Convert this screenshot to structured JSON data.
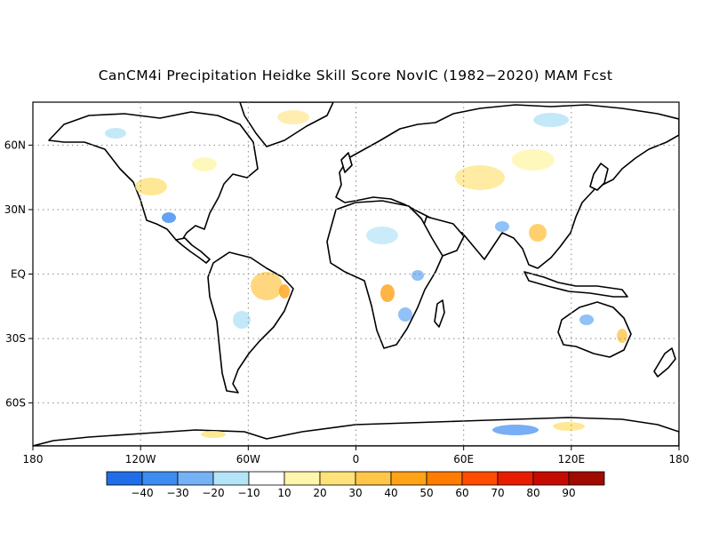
{
  "title": "CanCM4i Precipitation Heidke Skill Score NovIC (1982−2020) MAM Fcst",
  "map": {
    "lon_ticks": [
      "180",
      "120W",
      "60W",
      "0",
      "60E",
      "120E",
      "180"
    ],
    "lat_ticks": [
      "60N",
      "30N",
      "EQ",
      "30S",
      "60S"
    ],
    "lon_range": [
      -180,
      180
    ],
    "lat_range": [
      -80,
      80
    ],
    "gridlines": "dotted"
  },
  "colorbar": {
    "labels": [
      "−40",
      "−30",
      "−20",
      "−10",
      "10",
      "20",
      "30",
      "40",
      "50",
      "60",
      "70",
      "80",
      "90"
    ],
    "colors": [
      "#1f6ee8",
      "#3d8cf0",
      "#74b2f5",
      "#b4e4f8",
      "#ffffff",
      "#fff6ad",
      "#ffe27a",
      "#ffc64a",
      "#ffa317",
      "#ff7c00",
      "#ff4c00",
      "#e81d00",
      "#c40d00",
      "#a00a00"
    ]
  }
}
